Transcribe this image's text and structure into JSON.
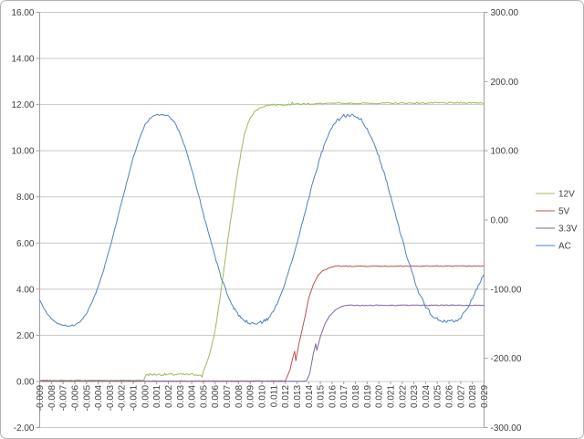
{
  "chart_data": {
    "type": "line",
    "title": "",
    "grid": "horizontal",
    "x_axis": {
      "min": -0.009,
      "max": 0.029,
      "tick_step": 0.001,
      "labels": [
        "-0.009",
        "-0.008",
        "-0.007",
        "-0.006",
        "-0.005",
        "-0.004",
        "-0.003",
        "-0.002",
        "-0.001",
        "0.000",
        "0.001",
        "0.002",
        "0.003",
        "0.004",
        "0.005",
        "0.006",
        "0.007",
        "0.008",
        "0.009",
        "0.010",
        "0.011",
        "0.012",
        "0.013",
        "0.014",
        "0.015",
        "0.016",
        "0.017",
        "0.018",
        "0.019",
        "0.020",
        "0.021",
        "0.022",
        "0.023",
        "0.024",
        "0.025",
        "0.026",
        "0.027",
        "0.028",
        "0.029"
      ]
    },
    "y_axis_left": {
      "min": -2,
      "max": 16,
      "tick_step": 2,
      "labels": [
        "16.00",
        "14.00",
        "12.00",
        "10.00",
        "8.00",
        "6.00",
        "4.00",
        "2.00",
        "0.00",
        "-2.00"
      ]
    },
    "y_axis_right": {
      "min": -300,
      "max": 300,
      "tick_step": 100,
      "labels": [
        "300.00",
        "200.00",
        "100.00",
        "0.00",
        "-100.00",
        "-200.00",
        "-300.00"
      ]
    },
    "colors": {
      "grid": "#c8c8c8",
      "axis": "#a0a0a0",
      "text": "#3f3f3f",
      "frame_border": "#b3b3b3"
    },
    "legend": {
      "position": "right",
      "items": [
        {
          "label": "12V",
          "color": "#9BBB59"
        },
        {
          "label": "5V",
          "color": "#C0504D"
        },
        {
          "label": "3.3V",
          "color": "#8064A2"
        },
        {
          "label": "AC",
          "color": "#4F81BD"
        }
      ]
    },
    "series": [
      {
        "name": "12V",
        "color": "#9BBB59",
        "axis": "left",
        "seed": 7,
        "noise": [
          [
            -0.009,
            0.015
          ],
          [
            0.0001,
            0.05
          ],
          [
            0.0048,
            0.03
          ]
        ],
        "points": [
          [
            -0.009,
            0.05
          ],
          [
            -0.0001,
            0.05
          ],
          [
            0.0001,
            0.3
          ],
          [
            0.0046,
            0.3
          ],
          [
            0.0049,
            0.2
          ],
          [
            0.005,
            0.45
          ],
          [
            0.0055,
            1.1
          ],
          [
            0.006,
            2.2
          ],
          [
            0.0065,
            3.9
          ],
          [
            0.007,
            5.8
          ],
          [
            0.0075,
            7.6
          ],
          [
            0.008,
            9.3
          ],
          [
            0.0085,
            10.7
          ],
          [
            0.009,
            11.45
          ],
          [
            0.0095,
            11.75
          ],
          [
            0.01,
            11.9
          ],
          [
            0.0105,
            11.97
          ],
          [
            0.011,
            12.0
          ],
          [
            0.0125,
            12.0
          ],
          [
            0.01255,
            11.85
          ],
          [
            0.0126,
            12.12
          ],
          [
            0.0127,
            12.02
          ],
          [
            0.016,
            12.05
          ],
          [
            0.029,
            12.08
          ]
        ]
      },
      {
        "name": "5V",
        "color": "#C0504D",
        "axis": "left",
        "seed": 13,
        "noise": [
          [
            -0.009,
            0.012
          ],
          [
            0.0163,
            0.02
          ]
        ],
        "points": [
          [
            -0.009,
            0.02
          ],
          [
            0.012,
            0.02
          ],
          [
            0.0124,
            0.5
          ],
          [
            0.0127,
            1.15
          ],
          [
            0.0128,
            1.3
          ],
          [
            0.0129,
            0.9
          ],
          [
            0.0132,
            1.7
          ],
          [
            0.0136,
            2.6
          ],
          [
            0.014,
            3.6
          ],
          [
            0.0144,
            4.2
          ],
          [
            0.0148,
            4.6
          ],
          [
            0.0152,
            4.8
          ],
          [
            0.0158,
            4.93
          ],
          [
            0.0163,
            5.0
          ],
          [
            0.029,
            5.0
          ]
        ]
      },
      {
        "name": "3.3V",
        "color": "#8064A2",
        "axis": "left",
        "seed": 29,
        "noise": [
          [
            -0.009,
            0.01
          ],
          [
            0.0173,
            0.02
          ]
        ],
        "points": [
          [
            -0.009,
            0.01
          ],
          [
            0.0138,
            0.01
          ],
          [
            0.0141,
            0.35
          ],
          [
            0.0144,
            1.2
          ],
          [
            0.0146,
            1.62
          ],
          [
            0.0147,
            1.35
          ],
          [
            0.015,
            1.95
          ],
          [
            0.0154,
            2.5
          ],
          [
            0.0158,
            2.85
          ],
          [
            0.0163,
            3.1
          ],
          [
            0.0168,
            3.25
          ],
          [
            0.0173,
            3.3
          ],
          [
            0.029,
            3.3
          ]
        ]
      },
      {
        "name": "AC",
        "color": "#4F81BD",
        "axis": "right",
        "seed": 51,
        "noise": [
          [
            -0.009,
            0.9
          ],
          [
            0.004,
            1.5
          ],
          [
            0.0075,
            2.3
          ],
          [
            0.0105,
            1.5
          ],
          [
            0.014,
            2.8
          ],
          [
            0.021,
            2.2
          ],
          [
            0.027,
            1.8
          ]
        ],
        "points": [
          [
            -0.009,
            -115
          ],
          [
            -0.0085,
            -132
          ],
          [
            -0.008,
            -143
          ],
          [
            -0.0075,
            -149
          ],
          [
            -0.007,
            -152
          ],
          [
            -0.0065,
            -153
          ],
          [
            -0.006,
            -152
          ],
          [
            -0.0055,
            -147
          ],
          [
            -0.005,
            -135
          ],
          [
            -0.0045,
            -118
          ],
          [
            -0.004,
            -97
          ],
          [
            -0.0035,
            -70
          ],
          [
            -0.003,
            -40
          ],
          [
            -0.0025,
            -8
          ],
          [
            -0.002,
            25
          ],
          [
            -0.0015,
            58
          ],
          [
            -0.001,
            90
          ],
          [
            -0.0005,
            117
          ],
          [
            0.0,
            137
          ],
          [
            0.0005,
            148
          ],
          [
            0.001,
            152
          ],
          [
            0.0015,
            152
          ],
          [
            0.002,
            150
          ],
          [
            0.0025,
            142
          ],
          [
            0.003,
            125
          ],
          [
            0.0035,
            102
          ],
          [
            0.004,
            73
          ],
          [
            0.0045,
            42
          ],
          [
            0.005,
            8
          ],
          [
            0.0055,
            -23
          ],
          [
            0.006,
            -53
          ],
          [
            0.0065,
            -82
          ],
          [
            0.007,
            -105
          ],
          [
            0.0075,
            -125
          ],
          [
            0.008,
            -138
          ],
          [
            0.0085,
            -146
          ],
          [
            0.009,
            -149
          ],
          [
            0.0095,
            -150
          ],
          [
            0.01,
            -148
          ],
          [
            0.0105,
            -143
          ],
          [
            0.011,
            -132
          ],
          [
            0.0115,
            -113
          ],
          [
            0.012,
            -90
          ],
          [
            0.0125,
            -63
          ],
          [
            0.013,
            -33
          ],
          [
            0.0135,
            -2
          ],
          [
            0.014,
            32
          ],
          [
            0.0145,
            63
          ],
          [
            0.015,
            92
          ],
          [
            0.0155,
            115
          ],
          [
            0.016,
            133
          ],
          [
            0.0165,
            145
          ],
          [
            0.017,
            150
          ],
          [
            0.0175,
            152
          ],
          [
            0.018,
            150
          ],
          [
            0.0185,
            145
          ],
          [
            0.019,
            133
          ],
          [
            0.0195,
            115
          ],
          [
            0.02,
            92
          ],
          [
            0.0205,
            65
          ],
          [
            0.021,
            35
          ],
          [
            0.0215,
            3
          ],
          [
            0.022,
            -28
          ],
          [
            0.0225,
            -58
          ],
          [
            0.023,
            -85
          ],
          [
            0.0235,
            -108
          ],
          [
            0.024,
            -125
          ],
          [
            0.0245,
            -137
          ],
          [
            0.025,
            -143
          ],
          [
            0.0255,
            -146
          ],
          [
            0.026,
            -147
          ],
          [
            0.0265,
            -146
          ],
          [
            0.027,
            -141
          ],
          [
            0.0275,
            -130
          ],
          [
            0.028,
            -113
          ],
          [
            0.0285,
            -95
          ],
          [
            0.029,
            -78
          ]
        ]
      }
    ]
  }
}
